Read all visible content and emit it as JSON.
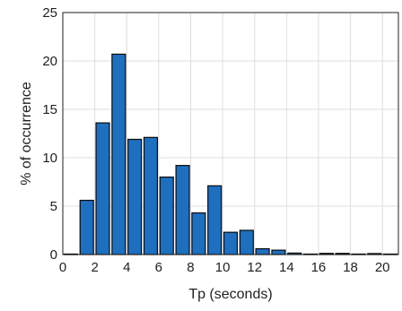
{
  "chart_data": {
    "type": "bar",
    "title": "",
    "xlabel": "Tp (seconds)",
    "ylabel": "% of occurrence",
    "xlim": [
      0,
      21
    ],
    "ylim": [
      0,
      25
    ],
    "x_ticks": [
      0,
      2,
      4,
      6,
      8,
      10,
      12,
      14,
      16,
      18,
      20
    ],
    "y_ticks": [
      0,
      5,
      10,
      15,
      20,
      25
    ],
    "grid": true,
    "bar_color": "#1f6fbf",
    "x": [
      1,
      2,
      3,
      4,
      5,
      6,
      7,
      8,
      9,
      10,
      11,
      12,
      13,
      14,
      15,
      16,
      17,
      18,
      19,
      20,
      21
    ],
    "values": [
      0.05,
      5.6,
      13.6,
      20.7,
      11.9,
      12.1,
      8.0,
      9.2,
      4.3,
      7.1,
      2.3,
      2.5,
      0.6,
      0.45,
      0.15,
      0.05,
      0.12,
      0.12,
      0.05,
      0.1,
      0.05
    ]
  }
}
